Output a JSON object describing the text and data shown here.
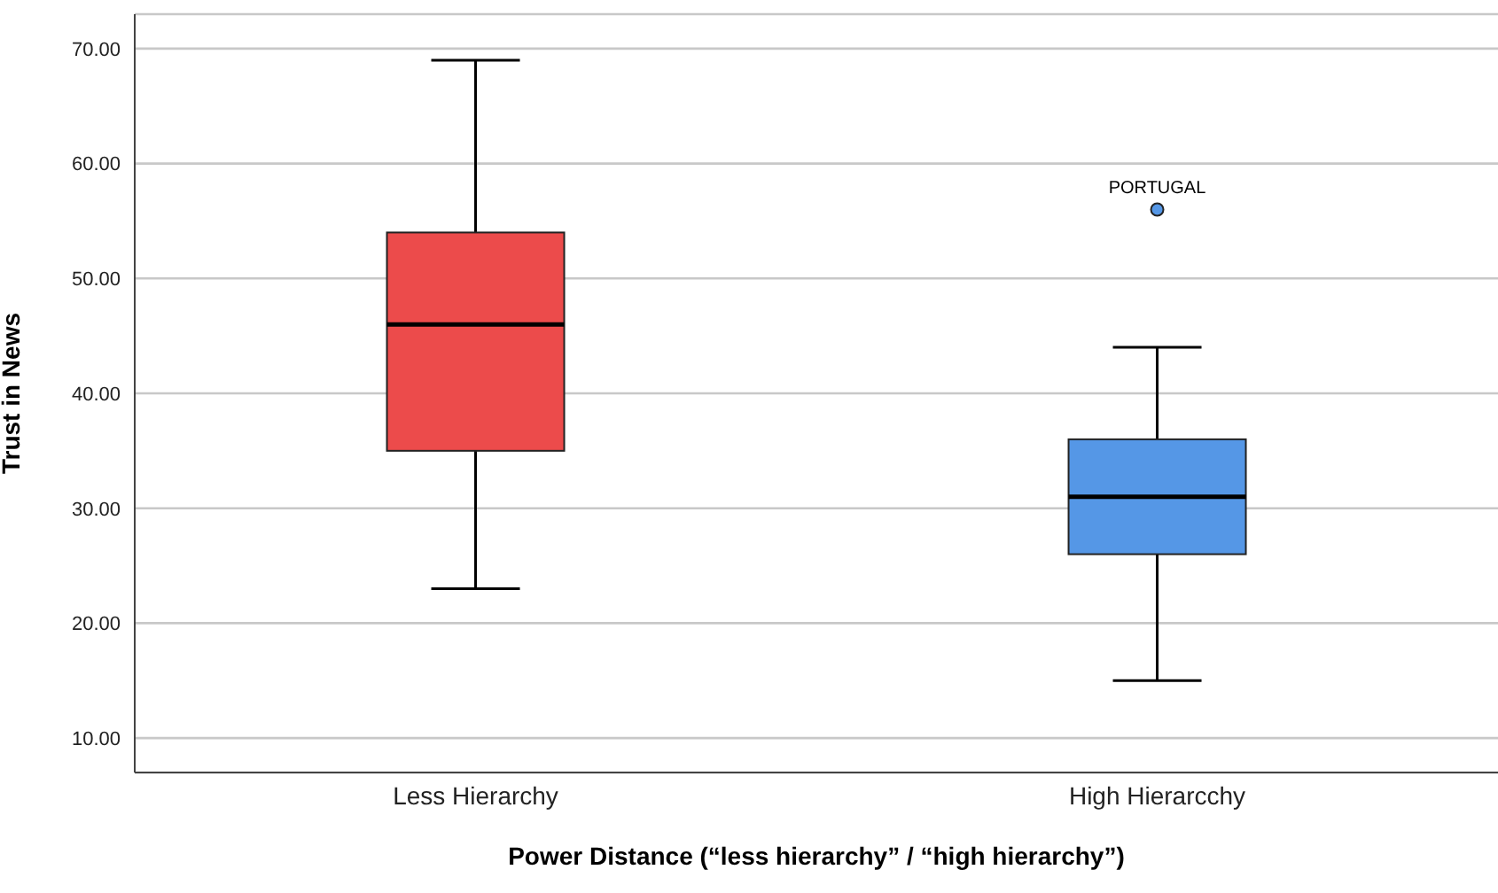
{
  "chart_data": {
    "type": "box",
    "xlabel": "Power Distance (“less hierarchy” / “high hierarchy”)",
    "ylabel": "Trust in News",
    "categories": [
      "Less Hierarchy",
      "High Hierarcchy"
    ],
    "colors": [
      "#ec4b4b",
      "#5597e6"
    ],
    "boxes": [
      {
        "low": 23,
        "q1": 35,
        "median": 46,
        "q3": 54,
        "high": 69
      },
      {
        "low": 15,
        "q1": 26,
        "median": 31,
        "q3": 36,
        "high": 44,
        "outliers": [
          56
        ]
      }
    ],
    "annotations": [
      "PORTUGAL"
    ],
    "ylim": [
      7,
      73
    ],
    "yticks": [
      {
        "value": 10,
        "label": "10.00"
      },
      {
        "value": 20,
        "label": "20.00"
      },
      {
        "value": 30,
        "label": "30.00"
      },
      {
        "value": 40,
        "label": "40.00"
      },
      {
        "value": 50,
        "label": "50.00"
      },
      {
        "value": 60,
        "label": "60.00"
      },
      {
        "value": 70,
        "label": "70.00"
      }
    ],
    "grid": "y"
  }
}
